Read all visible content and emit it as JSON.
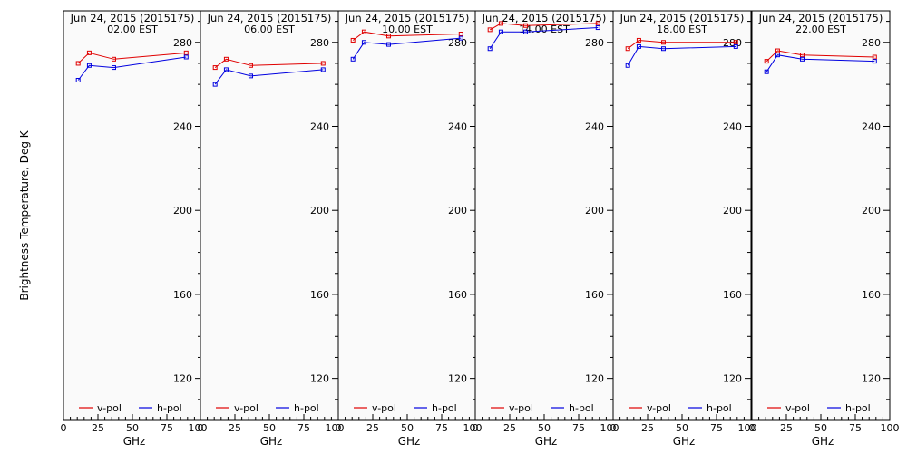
{
  "figure": {
    "ylabel": "Brightness Temperature, Deg K",
    "xlabel": "GHz",
    "colors": {
      "v_pol": "#e00000",
      "h_pol": "#0000e0",
      "panel_bg": "#fafafa"
    }
  },
  "chart_data": [
    {
      "type": "line",
      "title_line1": "Jun 24, 2015 (2015175)",
      "title_line2": "02.00 EST",
      "xlabel": "GHz",
      "xticks": [
        "0",
        "25",
        "50",
        "75",
        "100"
      ],
      "yticks": [
        "280",
        "240",
        "200",
        "160",
        "120"
      ],
      "xlim": [
        0,
        100
      ],
      "ylim": [
        100,
        295
      ],
      "x": [
        10.65,
        18.7,
        36.5,
        89.0
      ],
      "series": [
        {
          "name": "v-pol",
          "color": "#e00000",
          "values": [
            270,
            275,
            272,
            275
          ]
        },
        {
          "name": "h-pol",
          "color": "#0000e0",
          "values": [
            262,
            269,
            268,
            273
          ]
        }
      ]
    },
    {
      "type": "line",
      "title_line1": "Jun 24, 2015 (2015175)",
      "title_line2": "06.00 EST",
      "xlabel": "GHz",
      "xticks": [
        "0",
        "25",
        "50",
        "75",
        "100"
      ],
      "yticks": [
        "280",
        "240",
        "200",
        "160",
        "120"
      ],
      "xlim": [
        0,
        100
      ],
      "ylim": [
        100,
        295
      ],
      "x": [
        10.65,
        18.7,
        36.5,
        89.0
      ],
      "series": [
        {
          "name": "v-pol",
          "color": "#e00000",
          "values": [
            268,
            272,
            269,
            270
          ]
        },
        {
          "name": "h-pol",
          "color": "#0000e0",
          "values": [
            260,
            267,
            264,
            267
          ]
        }
      ]
    },
    {
      "type": "line",
      "title_line1": "Jun 24, 2015 (2015175)",
      "title_line2": "10.00 EST",
      "xlabel": "GHz",
      "xticks": [
        "0",
        "25",
        "50",
        "75",
        "100"
      ],
      "yticks": [
        "280",
        "240",
        "200",
        "160",
        "120"
      ],
      "xlim": [
        0,
        100
      ],
      "ylim": [
        100,
        295
      ],
      "x": [
        10.65,
        18.7,
        36.5,
        89.0
      ],
      "series": [
        {
          "name": "v-pol",
          "color": "#e00000",
          "values": [
            281,
            285,
            283,
            284
          ]
        },
        {
          "name": "h-pol",
          "color": "#0000e0",
          "values": [
            272,
            280,
            279,
            282
          ]
        }
      ]
    },
    {
      "type": "line",
      "title_line1": "Jun 24, 2015 (2015175)",
      "title_line2": "14.00 EST",
      "xlabel": "GHz",
      "xticks": [
        "0",
        "25",
        "50",
        "75",
        "100"
      ],
      "yticks": [
        "280",
        "240",
        "200",
        "160",
        "120"
      ],
      "xlim": [
        0,
        100
      ],
      "ylim": [
        100,
        295
      ],
      "x": [
        10.65,
        18.7,
        36.5,
        89.0
      ],
      "series": [
        {
          "name": "v-pol",
          "color": "#e00000",
          "values": [
            286,
            289,
            288,
            289
          ]
        },
        {
          "name": "h-pol",
          "color": "#0000e0",
          "values": [
            277,
            285,
            285,
            287
          ]
        }
      ]
    },
    {
      "type": "line",
      "title_line1": "Jun 24, 2015 (2015175)",
      "title_line2": "18.00 EST",
      "xlabel": "GHz",
      "xticks": [
        "0",
        "25",
        "50",
        "75",
        "100"
      ],
      "yticks": [
        "280",
        "240",
        "200",
        "160",
        "120"
      ],
      "xlim": [
        0,
        100
      ],
      "ylim": [
        100,
        295
      ],
      "x": [
        10.65,
        18.7,
        36.5,
        89.0
      ],
      "series": [
        {
          "name": "v-pol",
          "color": "#e00000",
          "values": [
            277,
            281,
            280,
            280
          ]
        },
        {
          "name": "h-pol",
          "color": "#0000e0",
          "values": [
            269,
            278,
            277,
            278
          ]
        }
      ]
    },
    {
      "type": "line",
      "title_line1": "Jun 24, 2015 (2015175)",
      "title_line2": "22.00 EST",
      "xlabel": "GHz",
      "xticks": [
        "0",
        "25",
        "50",
        "75",
        "100"
      ],
      "yticks": [
        "280",
        "240",
        "200",
        "160",
        "120"
      ],
      "xlim": [
        0,
        100
      ],
      "ylim": [
        100,
        295
      ],
      "x": [
        10.65,
        18.7,
        36.5,
        89.0
      ],
      "series": [
        {
          "name": "v-pol",
          "color": "#e00000",
          "values": [
            271,
            276,
            274,
            273
          ]
        },
        {
          "name": "h-pol",
          "color": "#0000e0",
          "values": [
            266,
            274,
            272,
            271
          ]
        }
      ]
    }
  ]
}
